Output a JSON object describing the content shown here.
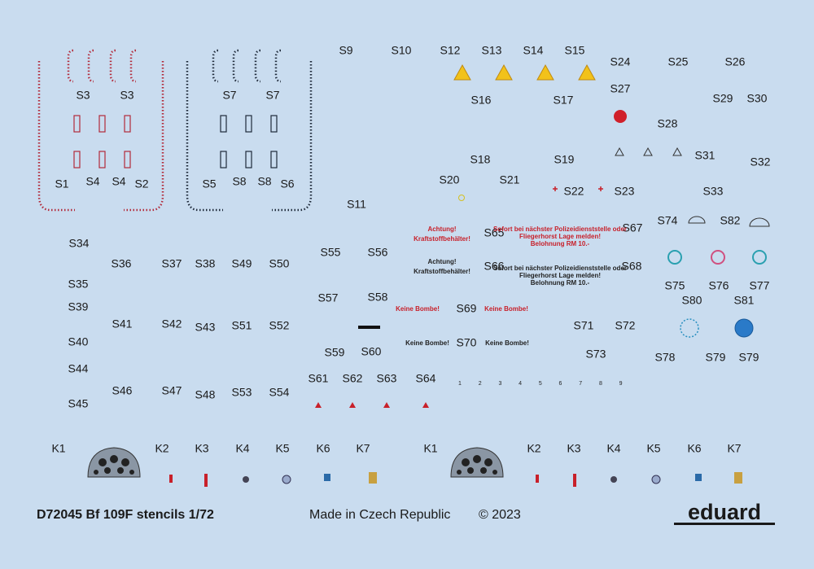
{
  "labels": [
    "S9",
    "S10",
    "S12",
    "S13",
    "S14",
    "S15",
    "S24",
    "S25",
    "S26",
    "S27",
    "S29",
    "S30",
    "S28",
    "S3",
    "S3",
    "S7",
    "S7",
    "S16",
    "S17",
    "S18",
    "S19",
    "S31",
    "S32",
    "S1",
    "S4",
    "S4",
    "S2",
    "S5",
    "S8",
    "S8",
    "S6",
    "S20",
    "S21",
    "S22",
    "S23",
    "S33",
    "S11",
    "S74",
    "S82",
    "S67",
    "S65",
    "S34",
    "S55",
    "S56",
    "S36",
    "S37",
    "S38",
    "S49",
    "S50",
    "S66",
    "S68",
    "S35",
    "S75",
    "S76",
    "S77",
    "S57",
    "S58",
    "S80",
    "S81",
    "S39",
    "S69",
    "S41",
    "S42",
    "S43",
    "S51",
    "S52",
    "S71",
    "S72",
    "S40",
    "S70",
    "S59",
    "S60",
    "S73",
    "S78",
    "S79",
    "S79",
    "S44",
    "S61",
    "S62",
    "S63",
    "S64",
    "S46",
    "S47",
    "S48",
    "S53",
    "S54",
    "S45"
  ],
  "k_labels": [
    "K1",
    "K2",
    "K3",
    "K4",
    "K5",
    "K6",
    "K7",
    "K1",
    "K2",
    "K3",
    "K4",
    "K5",
    "K6",
    "K7"
  ],
  "decals": {
    "achtung": [
      "Achtung!",
      "Kraftstoffbehälter!"
    ],
    "sofort": [
      "Sofort bei nächster Polizeidienststelle oder",
      "Fliegerhorst Lage melden!",
      "Belohnung RM 10.-"
    ],
    "keine_bombe": "Keine Bombe!",
    "numbers": [
      "1",
      "2",
      "3",
      "4",
      "5",
      "6",
      "7",
      "8",
      "9"
    ]
  },
  "footer": {
    "title": "D72045 Bf 109F stencils 1/72",
    "origin": "Made in Czech Republic",
    "copyright": "© 2023",
    "brand": "eduard"
  }
}
